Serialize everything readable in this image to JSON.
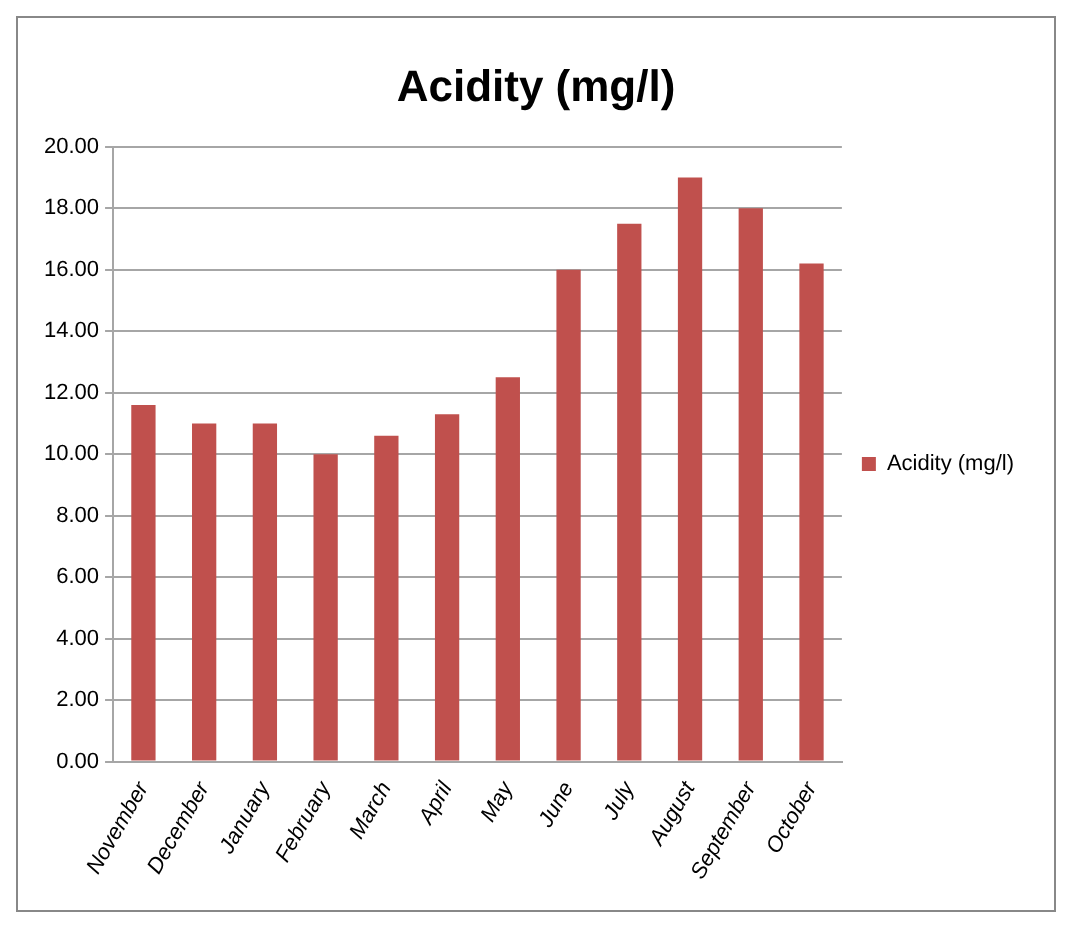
{
  "chart_data": {
    "type": "bar",
    "title": "Acidity (mg/l)",
    "categories": [
      "November",
      "December",
      "January",
      "February",
      "March",
      "April",
      "May",
      "June",
      "July",
      "August",
      "September",
      "October"
    ],
    "series": [
      {
        "name": "Acidity (mg/l)",
        "color": "#c0504d",
        "values": [
          11.6,
          11.0,
          11.0,
          10.0,
          10.6,
          11.3,
          12.5,
          16.0,
          17.5,
          19.0,
          18.0,
          16.2
        ]
      }
    ],
    "ylim": [
      0,
      20
    ],
    "yticks": [
      {
        "value": 0,
        "label": "0.00"
      },
      {
        "value": 2,
        "label": "2.00"
      },
      {
        "value": 4,
        "label": "4.00"
      },
      {
        "value": 6,
        "label": "6.00"
      },
      {
        "value": 8,
        "label": "8.00"
      },
      {
        "value": 10,
        "label": "10.00"
      },
      {
        "value": 12,
        "label": "12.00"
      },
      {
        "value": 14,
        "label": "14.00"
      },
      {
        "value": 16,
        "label": "16.00"
      },
      {
        "value": 18,
        "label": "18.00"
      },
      {
        "value": 20,
        "label": "20.00"
      }
    ],
    "grid": "y",
    "legend": "right"
  }
}
